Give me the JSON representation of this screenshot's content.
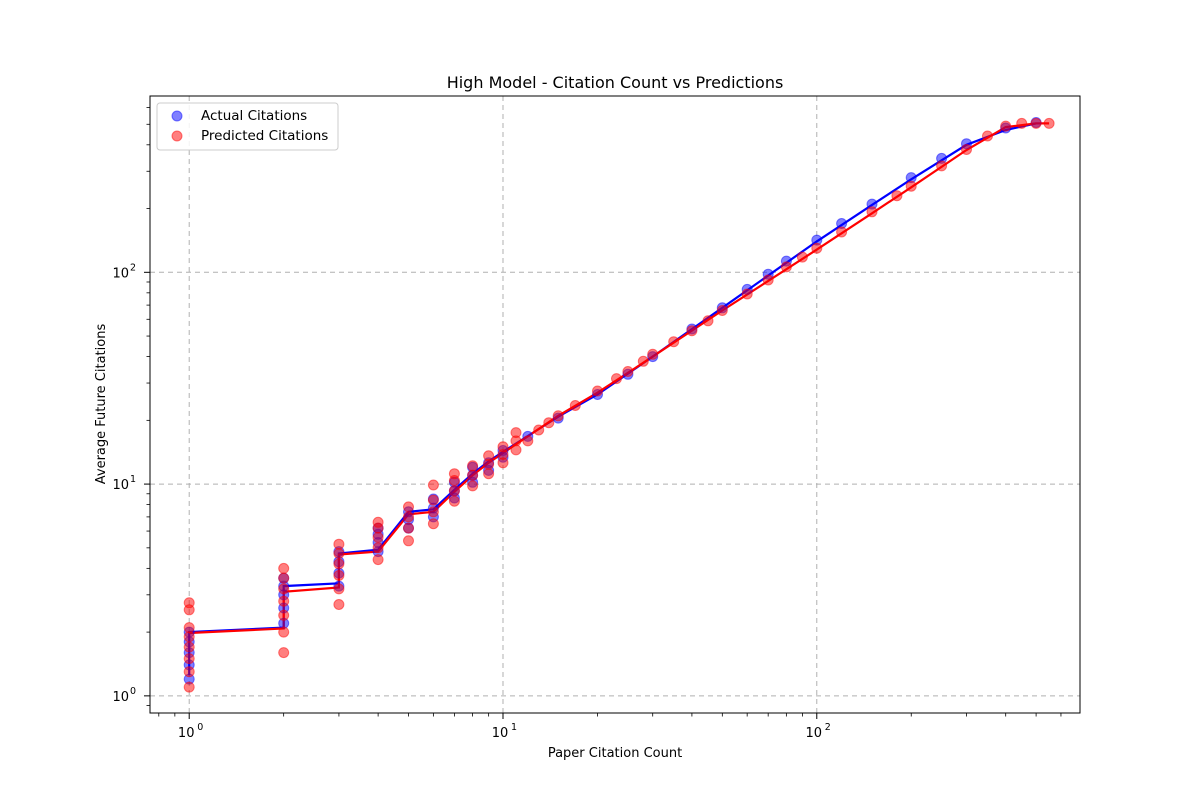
{
  "chart_data": {
    "type": "scatter",
    "title": "High Model - Citation Count vs Predictions",
    "xlabel": "Paper Citation Count",
    "ylabel": "Average Future Citations",
    "xscale": "log",
    "yscale": "log",
    "xlim": [
      0.75,
      690
    ],
    "ylim": [
      0.83,
      680
    ],
    "x_ticks": [
      1,
      10,
      100
    ],
    "x_tick_labels": [
      "10",
      "10",
      "10"
    ],
    "x_tick_exponents": [
      "0",
      "1",
      "2"
    ],
    "y_ticks": [
      1,
      10,
      100
    ],
    "y_tick_labels": [
      "10",
      "10",
      "10"
    ],
    "y_tick_exponents": [
      "0",
      "1",
      "2"
    ],
    "grid": true,
    "legend_position": "top-left",
    "series": [
      {
        "name": "Actual Citations",
        "color": "#0000ff",
        "points": [
          [
            1,
            1.2
          ],
          [
            1,
            1.4
          ],
          [
            1,
            1.6
          ],
          [
            1,
            1.8
          ],
          [
            1,
            2.0
          ],
          [
            2,
            2.2
          ],
          [
            2,
            2.6
          ],
          [
            2,
            3.0
          ],
          [
            2,
            3.3
          ],
          [
            2,
            3.6
          ],
          [
            3,
            3.3
          ],
          [
            3,
            3.8
          ],
          [
            3,
            4.3
          ],
          [
            3,
            4.8
          ],
          [
            4,
            4.8
          ],
          [
            4,
            5.3
          ],
          [
            4,
            5.8
          ],
          [
            4,
            6.2
          ],
          [
            5,
            6.2
          ],
          [
            5,
            6.8
          ],
          [
            5,
            7.4
          ],
          [
            6,
            7.0
          ],
          [
            6,
            7.7
          ],
          [
            6,
            8.5
          ],
          [
            7,
            8.6
          ],
          [
            7,
            9.3
          ],
          [
            7,
            10.2
          ],
          [
            8,
            10.2
          ],
          [
            8,
            11.0
          ],
          [
            8,
            12.0
          ],
          [
            9,
            11.6
          ],
          [
            9,
            12.6
          ],
          [
            10,
            13.4
          ],
          [
            10,
            14.4
          ],
          [
            12,
            16.8
          ],
          [
            15,
            20.5
          ],
          [
            20,
            26.5
          ],
          [
            25,
            33
          ],
          [
            30,
            40
          ],
          [
            40,
            54
          ],
          [
            50,
            68
          ],
          [
            60,
            83
          ],
          [
            70,
            98
          ],
          [
            80,
            113
          ],
          [
            100,
            142
          ],
          [
            120,
            170
          ],
          [
            150,
            210
          ],
          [
            200,
            280
          ],
          [
            250,
            345
          ],
          [
            300,
            405
          ],
          [
            400,
            480
          ],
          [
            500,
            510
          ]
        ],
        "line": [
          [
            1,
            1.25
          ],
          [
            1,
            2.0
          ],
          [
            2,
            2.1
          ],
          [
            2,
            3.3
          ],
          [
            3,
            3.4
          ],
          [
            3,
            4.7
          ],
          [
            4,
            4.9
          ],
          [
            5,
            7.4
          ],
          [
            6,
            7.6
          ],
          [
            7,
            9.4
          ],
          [
            8,
            11.2
          ],
          [
            9,
            12.8
          ],
          [
            10,
            14.2
          ],
          [
            15,
            20.8
          ],
          [
            20,
            26.5
          ],
          [
            30,
            40
          ],
          [
            50,
            68
          ],
          [
            100,
            140
          ],
          [
            150,
            208
          ],
          [
            200,
            275
          ],
          [
            300,
            400
          ],
          [
            400,
            470
          ],
          [
            500,
            505
          ]
        ]
      },
      {
        "name": "Predicted Citations",
        "color": "#ff0000",
        "points": [
          [
            1,
            1.1
          ],
          [
            1,
            1.3
          ],
          [
            1,
            1.5
          ],
          [
            1,
            1.7
          ],
          [
            1,
            1.9
          ],
          [
            1,
            2.1
          ],
          [
            1,
            2.55
          ],
          [
            1,
            2.75
          ],
          [
            2,
            1.6
          ],
          [
            2,
            2.0
          ],
          [
            2,
            2.4
          ],
          [
            2,
            2.8
          ],
          [
            2,
            3.2
          ],
          [
            2,
            3.6
          ],
          [
            2,
            4.0
          ],
          [
            3,
            2.7
          ],
          [
            3,
            3.2
          ],
          [
            3,
            3.7
          ],
          [
            3,
            4.2
          ],
          [
            3,
            4.7
          ],
          [
            3,
            5.2
          ],
          [
            4,
            4.4
          ],
          [
            4,
            5.0
          ],
          [
            4,
            5.6
          ],
          [
            4,
            6.2
          ],
          [
            4,
            6.6
          ],
          [
            5,
            5.4
          ],
          [
            5,
            6.2
          ],
          [
            5,
            7.0
          ],
          [
            5,
            7.8
          ],
          [
            6,
            6.5
          ],
          [
            6,
            7.4
          ],
          [
            6,
            8.4
          ],
          [
            6,
            9.9
          ],
          [
            7,
            8.3
          ],
          [
            7,
            9.3
          ],
          [
            7,
            10.4
          ],
          [
            7,
            11.2
          ],
          [
            8,
            9.8
          ],
          [
            8,
            11.0
          ],
          [
            8,
            12.2
          ],
          [
            9,
            11.2
          ],
          [
            9,
            12.4
          ],
          [
            9,
            13.6
          ],
          [
            10,
            12.6
          ],
          [
            10,
            13.8
          ],
          [
            10,
            15.0
          ],
          [
            11,
            14.5
          ],
          [
            11,
            16.0
          ],
          [
            11,
            17.5
          ],
          [
            12,
            16.0
          ],
          [
            13,
            18.0
          ],
          [
            14,
            19.5
          ],
          [
            15,
            21.0
          ],
          [
            17,
            23.5
          ],
          [
            20,
            27.5
          ],
          [
            23,
            31.5
          ],
          [
            25,
            34
          ],
          [
            28,
            38
          ],
          [
            30,
            41
          ],
          [
            35,
            47
          ],
          [
            40,
            53
          ],
          [
            45,
            59
          ],
          [
            50,
            66
          ],
          [
            60,
            79
          ],
          [
            70,
            92
          ],
          [
            80,
            106
          ],
          [
            90,
            118
          ],
          [
            100,
            130
          ],
          [
            120,
            155
          ],
          [
            150,
            193
          ],
          [
            180,
            230
          ],
          [
            200,
            255
          ],
          [
            250,
            318
          ],
          [
            300,
            380
          ],
          [
            350,
            440
          ],
          [
            400,
            490
          ],
          [
            450,
            505
          ],
          [
            500,
            505
          ],
          [
            550,
            505
          ]
        ],
        "line": [
          [
            1,
            1.98
          ],
          [
            2,
            2.08
          ],
          [
            2,
            3.1
          ],
          [
            3,
            3.25
          ],
          [
            3,
            4.65
          ],
          [
            4,
            4.8
          ],
          [
            5,
            7.2
          ],
          [
            6,
            7.4
          ],
          [
            7,
            9.2
          ],
          [
            8,
            11.0
          ],
          [
            9,
            12.6
          ],
          [
            10,
            14.0
          ],
          [
            15,
            21
          ],
          [
            20,
            27
          ],
          [
            30,
            40
          ],
          [
            50,
            66
          ],
          [
            100,
            128
          ],
          [
            150,
            190
          ],
          [
            200,
            252
          ],
          [
            300,
            378
          ],
          [
            400,
            485
          ],
          [
            500,
            505
          ],
          [
            550,
            505
          ]
        ]
      }
    ]
  }
}
